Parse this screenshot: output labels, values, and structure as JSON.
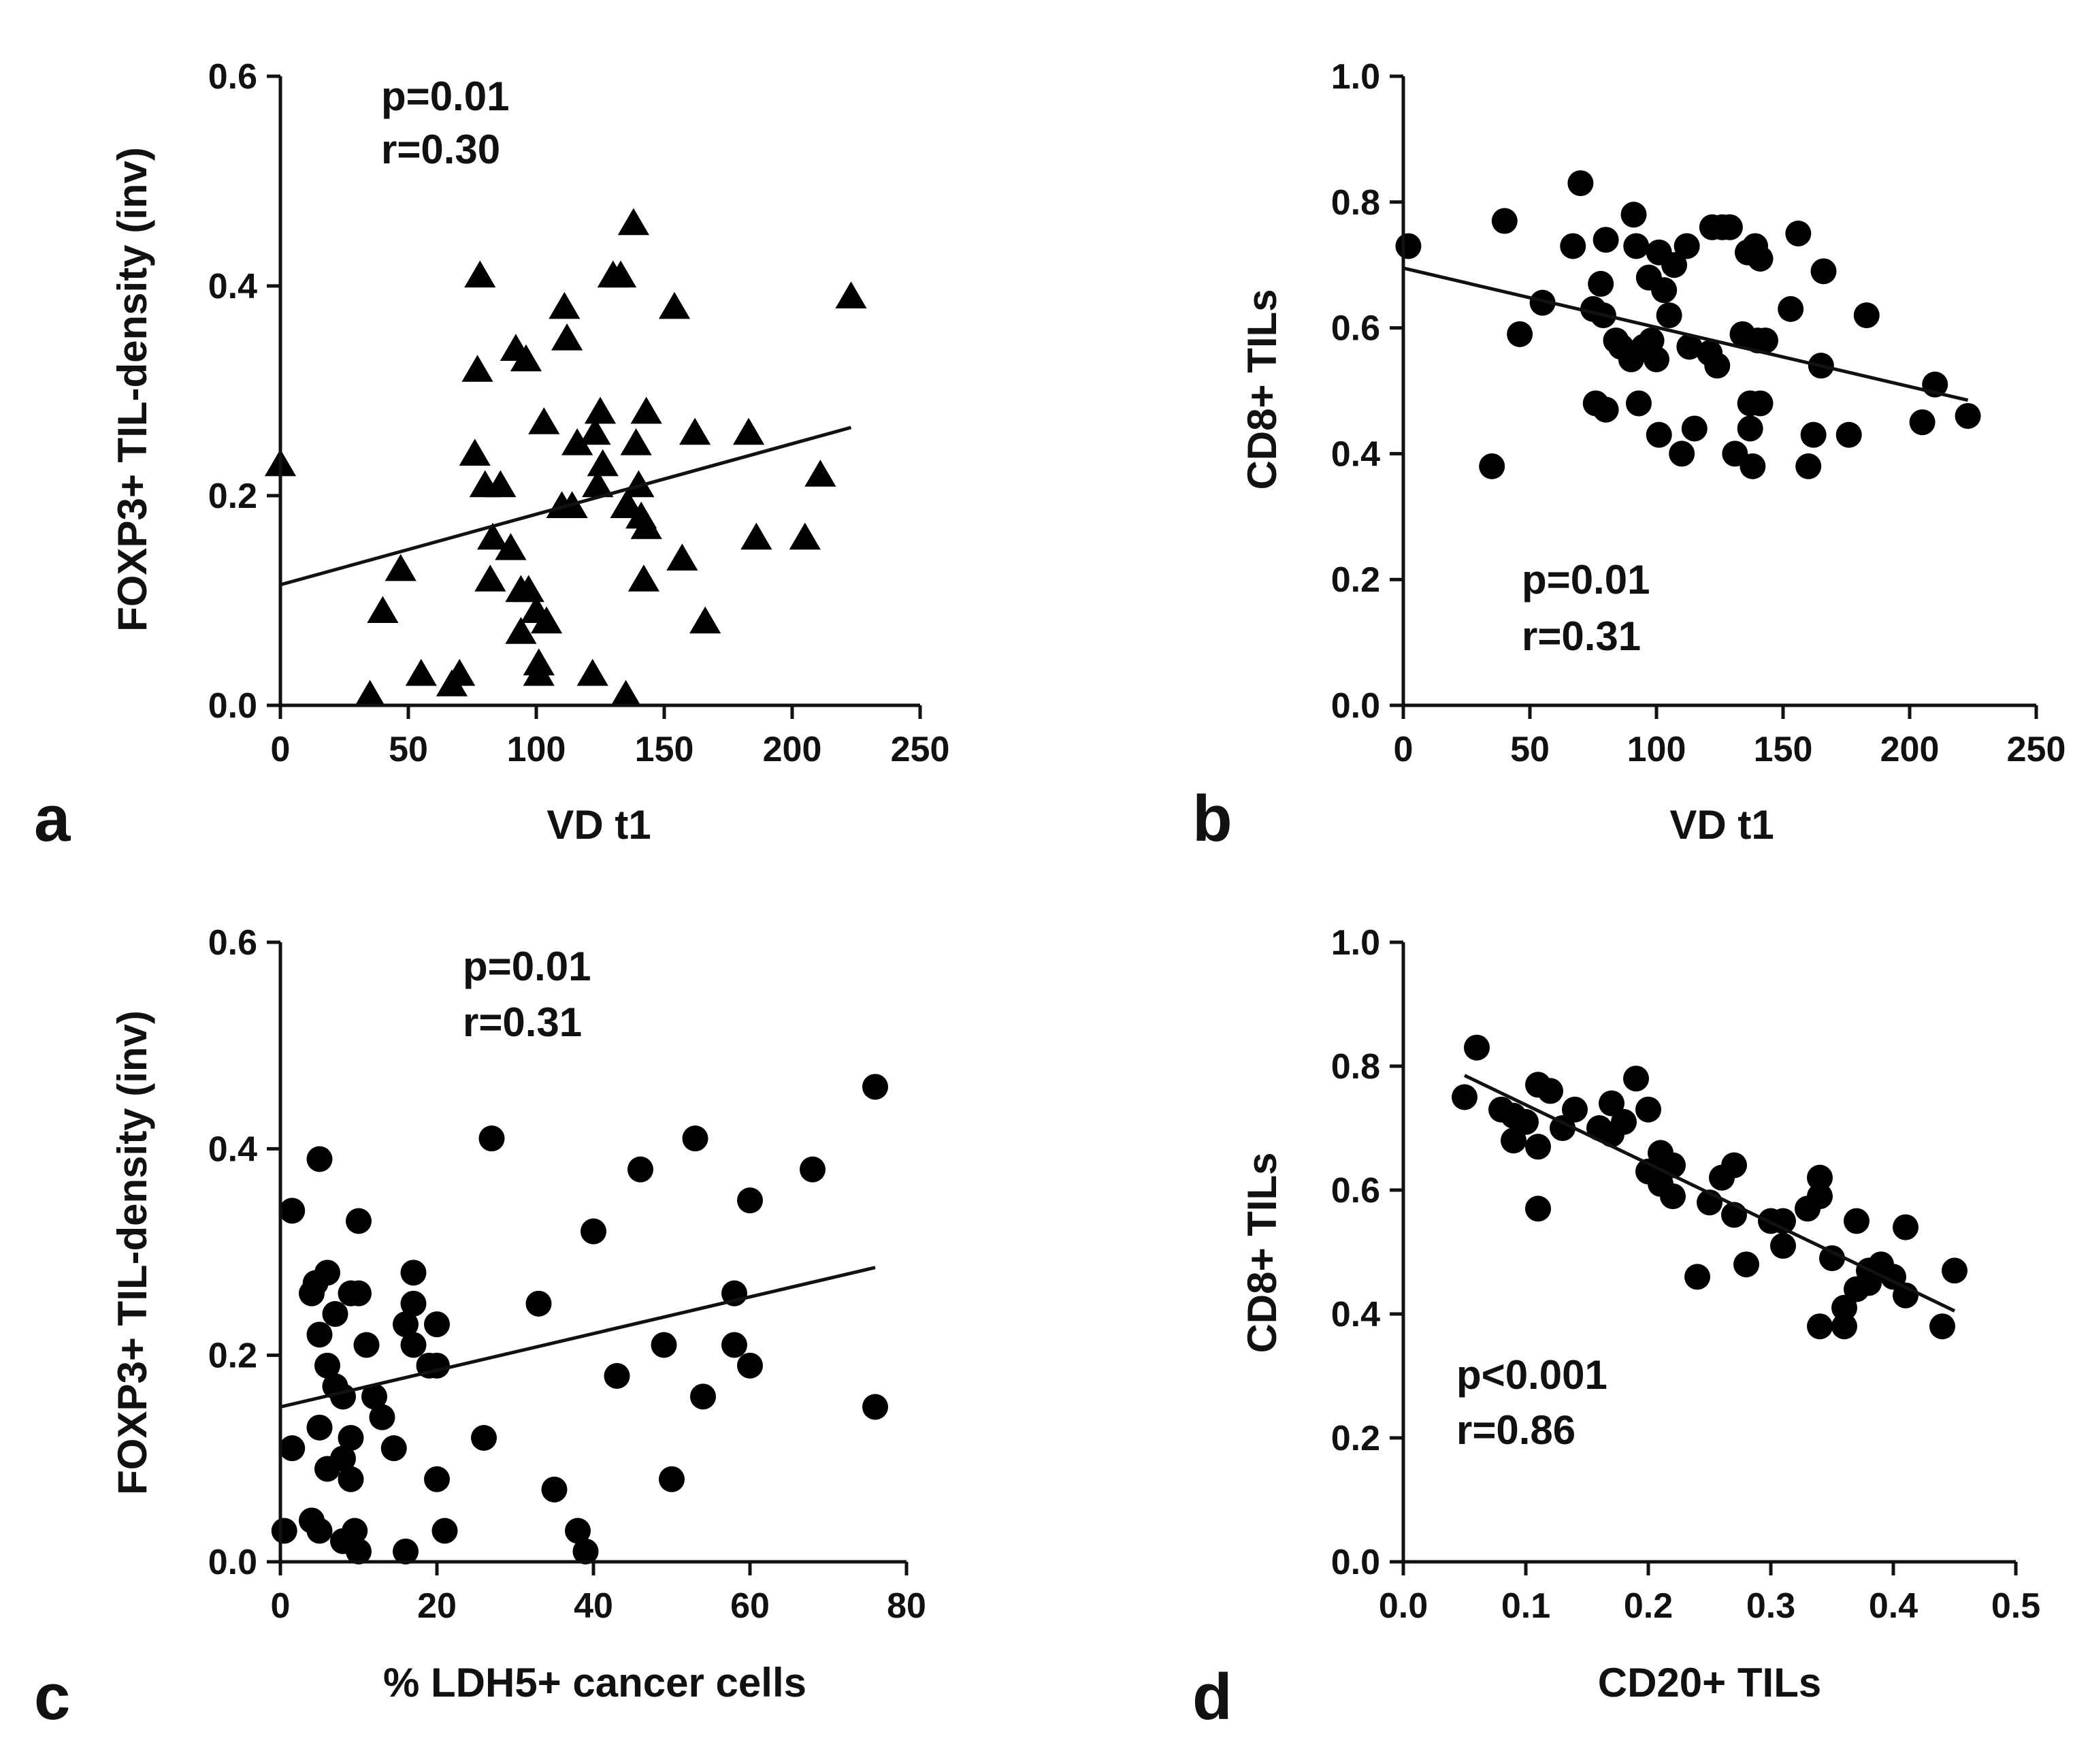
{
  "chart_data": [
    {
      "panel": "a",
      "type": "scatter",
      "marker": "triangle",
      "xlabel": "VD t1",
      "ylabel": "FOXP3+ TIL-density (inv)",
      "xlim": [
        0,
        250
      ],
      "ylim": [
        0,
        0.6
      ],
      "xticks": [
        "0",
        "50",
        "100",
        "150",
        "200",
        "250"
      ],
      "yticks": [
        "0.0",
        "0.2",
        "0.4",
        "0.6"
      ],
      "annotation": [
        "p=0.01",
        "r=0.30"
      ],
      "annotation_position": "top-left",
      "fit_line": {
        "x": [
          0,
          223
        ],
        "y": [
          0.115,
          0.265
        ]
      },
      "points": [
        [
          0,
          0.23
        ],
        [
          35,
          0.01
        ],
        [
          40,
          0.09
        ],
        [
          47,
          0.13
        ],
        [
          55,
          0.03
        ],
        [
          67,
          0.02
        ],
        [
          70,
          0.03
        ],
        [
          76,
          0.24
        ],
        [
          77,
          0.32
        ],
        [
          78,
          0.41
        ],
        [
          80,
          0.21
        ],
        [
          82,
          0.12
        ],
        [
          83,
          0.16
        ],
        [
          86,
          0.21
        ],
        [
          90,
          0.15
        ],
        [
          92,
          0.34
        ],
        [
          94,
          0.11
        ],
        [
          94,
          0.07
        ],
        [
          96,
          0.33
        ],
        [
          97,
          0.11
        ],
        [
          100,
          0.09
        ],
        [
          101,
          0.03
        ],
        [
          101,
          0.04
        ],
        [
          103,
          0.27
        ],
        [
          104,
          0.08
        ],
        [
          110,
          0.19
        ],
        [
          111,
          0.38
        ],
        [
          112,
          0.35
        ],
        [
          114,
          0.19
        ],
        [
          116,
          0.25
        ],
        [
          122,
          0.03
        ],
        [
          123,
          0.26
        ],
        [
          124,
          0.21
        ],
        [
          125,
          0.28
        ],
        [
          126,
          0.23
        ],
        [
          130,
          0.41
        ],
        [
          133,
          0.41
        ],
        [
          135,
          0.01
        ],
        [
          135,
          0.19
        ],
        [
          136,
          0.19
        ],
        [
          138,
          0.46
        ],
        [
          139,
          0.25
        ],
        [
          140,
          0.21
        ],
        [
          141,
          0.18
        ],
        [
          142,
          0.12
        ],
        [
          143,
          0.28
        ],
        [
          143,
          0.17
        ],
        [
          154,
          0.38
        ],
        [
          157,
          0.14
        ],
        [
          162,
          0.26
        ],
        [
          166,
          0.08
        ],
        [
          183,
          0.26
        ],
        [
          186,
          0.16
        ],
        [
          205,
          0.16
        ],
        [
          211,
          0.22
        ],
        [
          223,
          0.39
        ]
      ]
    },
    {
      "panel": "b",
      "type": "scatter",
      "marker": "circle",
      "xlabel": "VD t1",
      "ylabel": "CD8+ TILs",
      "xlim": [
        0,
        250
      ],
      "ylim": [
        0,
        1.0
      ],
      "xticks": [
        "0",
        "50",
        "100",
        "150",
        "200",
        "250"
      ],
      "yticks": [
        "0.0",
        "0.2",
        "0.4",
        "0.6",
        "0.8",
        "1.0"
      ],
      "annotation": [
        "p=0.01",
        "r=0.31"
      ],
      "annotation_position": "bottom-left",
      "fit_line": {
        "x": [
          0,
          223
        ],
        "y": [
          0.695,
          0.485
        ]
      },
      "points": [
        [
          2,
          0.73
        ],
        [
          35,
          0.38
        ],
        [
          40,
          0.77
        ],
        [
          46,
          0.59
        ],
        [
          55,
          0.64
        ],
        [
          67,
          0.73
        ],
        [
          70,
          0.83
        ],
        [
          75,
          0.63
        ],
        [
          76,
          0.48
        ],
        [
          78,
          0.67
        ],
        [
          79,
          0.62
        ],
        [
          80,
          0.74
        ],
        [
          80,
          0.47
        ],
        [
          84,
          0.58
        ],
        [
          86,
          0.57
        ],
        [
          90,
          0.55
        ],
        [
          91,
          0.78
        ],
        [
          92,
          0.73
        ],
        [
          93,
          0.48
        ],
        [
          95,
          0.57
        ],
        [
          97,
          0.68
        ],
        [
          98,
          0.58
        ],
        [
          100,
          0.55
        ],
        [
          101,
          0.72
        ],
        [
          101,
          0.43
        ],
        [
          103,
          0.66
        ],
        [
          105,
          0.62
        ],
        [
          107,
          0.7
        ],
        [
          110,
          0.4
        ],
        [
          112,
          0.73
        ],
        [
          113,
          0.57
        ],
        [
          115,
          0.44
        ],
        [
          121,
          0.56
        ],
        [
          122,
          0.76
        ],
        [
          124,
          0.54
        ],
        [
          126,
          0.76
        ],
        [
          129,
          0.76
        ],
        [
          131,
          0.4
        ],
        [
          134,
          0.59
        ],
        [
          136,
          0.72
        ],
        [
          137,
          0.48
        ],
        [
          137,
          0.44
        ],
        [
          138,
          0.38
        ],
        [
          139,
          0.73
        ],
        [
          140,
          0.58
        ],
        [
          141,
          0.71
        ],
        [
          141,
          0.48
        ],
        [
          143,
          0.58
        ],
        [
          153,
          0.63
        ],
        [
          156,
          0.75
        ],
        [
          160,
          0.38
        ],
        [
          162,
          0.43
        ],
        [
          165,
          0.54
        ],
        [
          166,
          0.69
        ],
        [
          176,
          0.43
        ],
        [
          183,
          0.62
        ],
        [
          205,
          0.45
        ],
        [
          210,
          0.51
        ],
        [
          223,
          0.46
        ]
      ]
    },
    {
      "panel": "c",
      "type": "scatter",
      "marker": "circle",
      "xlabel": "% LDH5+ cancer cells",
      "ylabel": "FOXP3+ TIL-density (inv)",
      "xlim": [
        0,
        80
      ],
      "ylim": [
        0,
        0.6
      ],
      "xticks": [
        "0",
        "20",
        "40",
        "60",
        "80"
      ],
      "yticks": [
        "0.0",
        "0.2",
        "0.4",
        "0.6"
      ],
      "annotation": [
        "p=0.01",
        "r=0.31"
      ],
      "annotation_position": "top-center",
      "fit_line": {
        "x": [
          0,
          76
        ],
        "y": [
          0.15,
          0.285
        ]
      },
      "points": [
        [
          0.5,
          0.03
        ],
        [
          1.5,
          0.34
        ],
        [
          1.5,
          0.11
        ],
        [
          4,
          0.26
        ],
        [
          4,
          0.04
        ],
        [
          4.5,
          0.27
        ],
        [
          5,
          0.03
        ],
        [
          5,
          0.13
        ],
        [
          5,
          0.22
        ],
        [
          5,
          0.39
        ],
        [
          6,
          0.09
        ],
        [
          6,
          0.19
        ],
        [
          6,
          0.28
        ],
        [
          7,
          0.24
        ],
        [
          7,
          0.17
        ],
        [
          8,
          0.02
        ],
        [
          8,
          0.1
        ],
        [
          8,
          0.16
        ],
        [
          9,
          0.12
        ],
        [
          9,
          0.26
        ],
        [
          9,
          0.08
        ],
        [
          9.5,
          0.03
        ],
        [
          10,
          0.26
        ],
        [
          10,
          0.33
        ],
        [
          10,
          0.01
        ],
        [
          11,
          0.21
        ],
        [
          12,
          0.16
        ],
        [
          13,
          0.14
        ],
        [
          14.5,
          0.11
        ],
        [
          16,
          0.01
        ],
        [
          16,
          0.23
        ],
        [
          17,
          0.28
        ],
        [
          17,
          0.25
        ],
        [
          17,
          0.21
        ],
        [
          19,
          0.19
        ],
        [
          20,
          0.19
        ],
        [
          20,
          0.23
        ],
        [
          20,
          0.08
        ],
        [
          21,
          0.03
        ],
        [
          26,
          0.12
        ],
        [
          27,
          0.41
        ],
        [
          33,
          0.25
        ],
        [
          35,
          0.07
        ],
        [
          38,
          0.03
        ],
        [
          39,
          0.01
        ],
        [
          40,
          0.32
        ],
        [
          43,
          0.18
        ],
        [
          46,
          0.38
        ],
        [
          49,
          0.21
        ],
        [
          50,
          0.08
        ],
        [
          53,
          0.41
        ],
        [
          54,
          0.16
        ],
        [
          58,
          0.26
        ],
        [
          58,
          0.21
        ],
        [
          60,
          0.19
        ],
        [
          60,
          0.35
        ],
        [
          68,
          0.38
        ],
        [
          76,
          0.46
        ],
        [
          76,
          0.15
        ]
      ]
    },
    {
      "panel": "d",
      "type": "scatter",
      "marker": "circle",
      "xlabel": "CD20+ TILs",
      "ylabel": "CD8+ TILs",
      "xlim": [
        0,
        0.5
      ],
      "ylim": [
        0,
        1.0
      ],
      "xticks": [
        "0.0",
        "0.1",
        "0.2",
        "0.3",
        "0.4",
        "0.5"
      ],
      "yticks": [
        "0.0",
        "0.2",
        "0.4",
        "0.6",
        "0.8",
        "1.0"
      ],
      "annotation": [
        "p<0.001",
        "r=0.86"
      ],
      "annotation_position": "bottom-left",
      "fit_line": {
        "x": [
          0.05,
          0.45
        ],
        "y": [
          0.785,
          0.405
        ]
      },
      "points": [
        [
          0.05,
          0.75
        ],
        [
          0.06,
          0.83
        ],
        [
          0.08,
          0.73
        ],
        [
          0.09,
          0.72
        ],
        [
          0.09,
          0.68
        ],
        [
          0.1,
          0.71
        ],
        [
          0.11,
          0.67
        ],
        [
          0.11,
          0.57
        ],
        [
          0.11,
          0.77
        ],
        [
          0.12,
          0.76
        ],
        [
          0.13,
          0.7
        ],
        [
          0.14,
          0.73
        ],
        [
          0.16,
          0.7
        ],
        [
          0.17,
          0.74
        ],
        [
          0.17,
          0.69
        ],
        [
          0.18,
          0.71
        ],
        [
          0.19,
          0.78
        ],
        [
          0.2,
          0.73
        ],
        [
          0.2,
          0.63
        ],
        [
          0.21,
          0.66
        ],
        [
          0.21,
          0.61
        ],
        [
          0.22,
          0.64
        ],
        [
          0.22,
          0.59
        ],
        [
          0.24,
          0.46
        ],
        [
          0.25,
          0.58
        ],
        [
          0.26,
          0.62
        ],
        [
          0.27,
          0.64
        ],
        [
          0.27,
          0.56
        ],
        [
          0.28,
          0.48
        ],
        [
          0.3,
          0.55
        ],
        [
          0.31,
          0.51
        ],
        [
          0.31,
          0.55
        ],
        [
          0.33,
          0.57
        ],
        [
          0.34,
          0.59
        ],
        [
          0.34,
          0.62
        ],
        [
          0.34,
          0.38
        ],
        [
          0.35,
          0.49
        ],
        [
          0.36,
          0.38
        ],
        [
          0.36,
          0.41
        ],
        [
          0.37,
          0.44
        ],
        [
          0.37,
          0.55
        ],
        [
          0.38,
          0.45
        ],
        [
          0.38,
          0.47
        ],
        [
          0.39,
          0.48
        ],
        [
          0.4,
          0.46
        ],
        [
          0.41,
          0.43
        ],
        [
          0.41,
          0.54
        ],
        [
          0.44,
          0.38
        ],
        [
          0.45,
          0.47
        ]
      ]
    }
  ]
}
